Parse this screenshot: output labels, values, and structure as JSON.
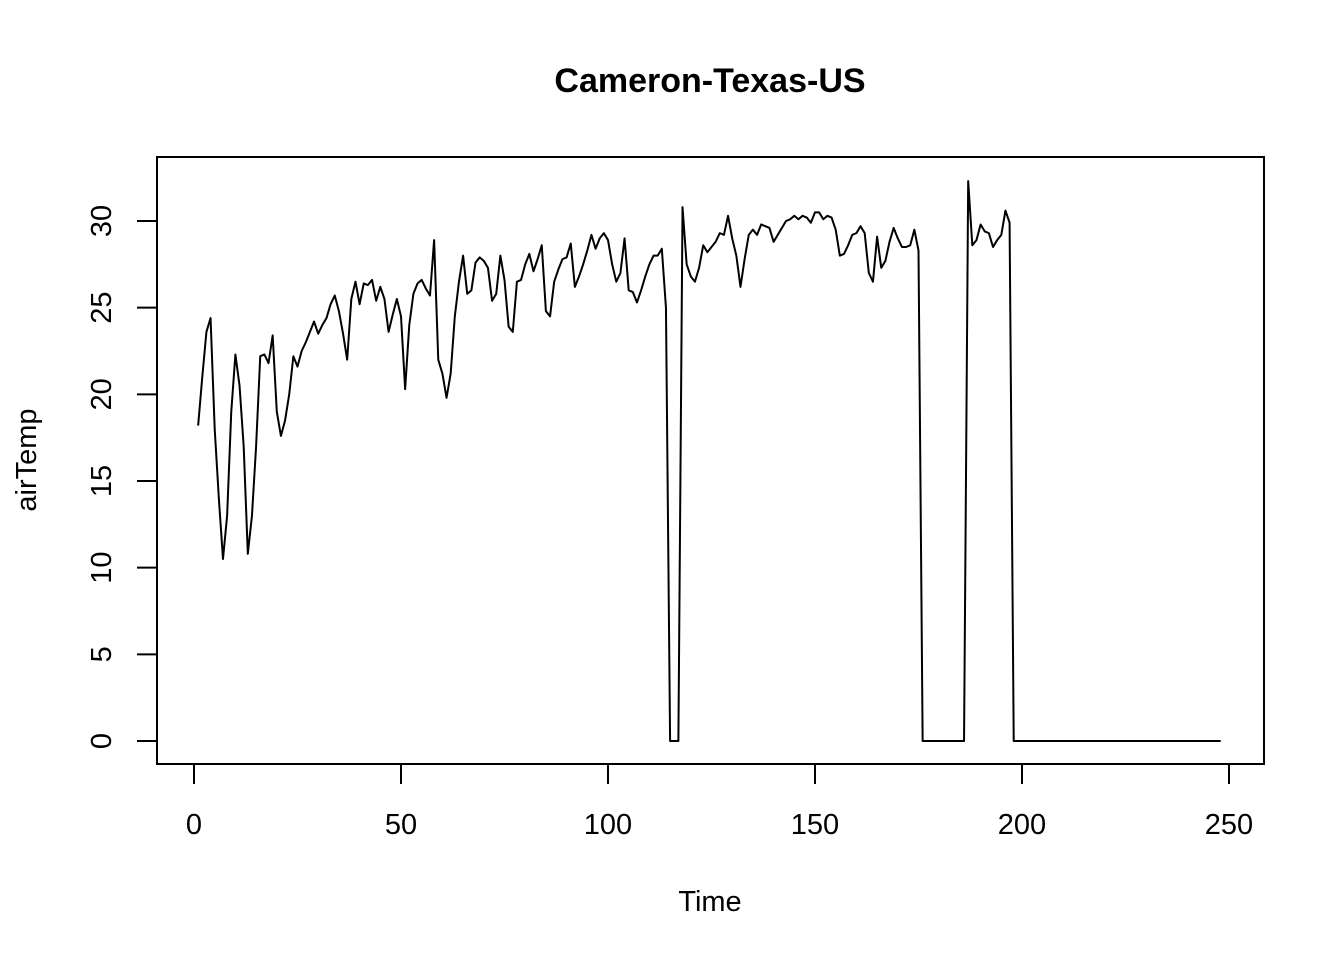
{
  "chart_data": {
    "type": "line",
    "title": "Cameron-Texas-US",
    "xlabel": "Time",
    "ylabel": "airTemp",
    "xlim": [
      1,
      248
    ],
    "ylim": [
      0,
      32.3
    ],
    "xticks": [
      0,
      50,
      100,
      150,
      200,
      250
    ],
    "yticks": [
      0,
      5,
      10,
      15,
      20,
      25,
      30
    ],
    "grid": false,
    "legend": "none",
    "line_color": "#000000",
    "series": [
      {
        "x_start": 1,
        "values": [
          18.2,
          21.0,
          23.6,
          24.4,
          18.0,
          14.0,
          10.5,
          13.0,
          19.0,
          22.3,
          20.5,
          17.0,
          10.8,
          13.0,
          17.0,
          22.2,
          22.3,
          21.8,
          23.4,
          19.0,
          17.6,
          18.5,
          20.0,
          22.2,
          21.6,
          22.5,
          23.0,
          23.6,
          24.2,
          23.5,
          24.0,
          24.4,
          25.2,
          25.7,
          24.8,
          23.5,
          22.0,
          25.5,
          26.5,
          25.2,
          26.4,
          26.3,
          26.6,
          25.4,
          26.2,
          25.5,
          23.6,
          24.6,
          25.5,
          24.5,
          20.3,
          24.0,
          25.8,
          26.4,
          26.6,
          26.1,
          25.7,
          28.9,
          22.0,
          21.2,
          19.8,
          21.2,
          24.5,
          26.5,
          28.0,
          25.8,
          26.0,
          27.6,
          27.9,
          27.7,
          27.3,
          25.4,
          25.8,
          28.0,
          26.6,
          23.9,
          23.6,
          26.5,
          26.6,
          27.5,
          28.1,
          27.1,
          27.8,
          28.6,
          24.8,
          24.5,
          26.5,
          27.2,
          27.8,
          27.9,
          28.7,
          26.2,
          26.8,
          27.5,
          28.3,
          29.2,
          28.4,
          29.0,
          29.3,
          28.9,
          27.5,
          26.5,
          27.0,
          29.0,
          26.0,
          25.9,
          25.3,
          26.0,
          26.8,
          27.5,
          28.0,
          28.0,
          28.4,
          25.0,
          0.0,
          0.0,
          0.0,
          30.8,
          27.5,
          26.8,
          26.5,
          27.3,
          28.6,
          28.2,
          28.5,
          28.8,
          29.3,
          29.2,
          30.3,
          29.0,
          28.0,
          26.2,
          27.8,
          29.2,
          29.5,
          29.2,
          29.8,
          29.7,
          29.6,
          28.8,
          29.2,
          29.6,
          30.0,
          30.1,
          30.3,
          30.1,
          30.3,
          30.2,
          29.9,
          30.5,
          30.5,
          30.1,
          30.3,
          30.2,
          29.5,
          28.0,
          28.1,
          28.6,
          29.2,
          29.3,
          29.7,
          29.3,
          27.0,
          26.5,
          29.1,
          27.3,
          27.7,
          28.8,
          29.6,
          29.0,
          28.5,
          28.5,
          28.6,
          29.5,
          28.3,
          0.0,
          0.0,
          0.0,
          0.0,
          0.0,
          0.0,
          0.0,
          0.0,
          0.0,
          0.0,
          0.0,
          32.3,
          28.6,
          28.9,
          29.8,
          29.4,
          29.3,
          28.5,
          28.9,
          29.2,
          30.6,
          29.9,
          0.0,
          0.0,
          0.0,
          0.0,
          0.0,
          0.0,
          0.0,
          0.0,
          0.0,
          0.0,
          0.0,
          0.0,
          0.0,
          0.0,
          0.0,
          0.0,
          0.0,
          0.0,
          0.0,
          0.0,
          0.0,
          0.0,
          0.0,
          0.0,
          0.0,
          0.0,
          0.0,
          0.0,
          0.0,
          0.0,
          0.0,
          0.0,
          0.0,
          0.0,
          0.0,
          0.0,
          0.0,
          0.0,
          0.0,
          0.0,
          0.0,
          0.0,
          0.0,
          0.0,
          0.0,
          0.0,
          0.0,
          0.0,
          0.0,
          0.0,
          0.0
        ]
      }
    ]
  }
}
